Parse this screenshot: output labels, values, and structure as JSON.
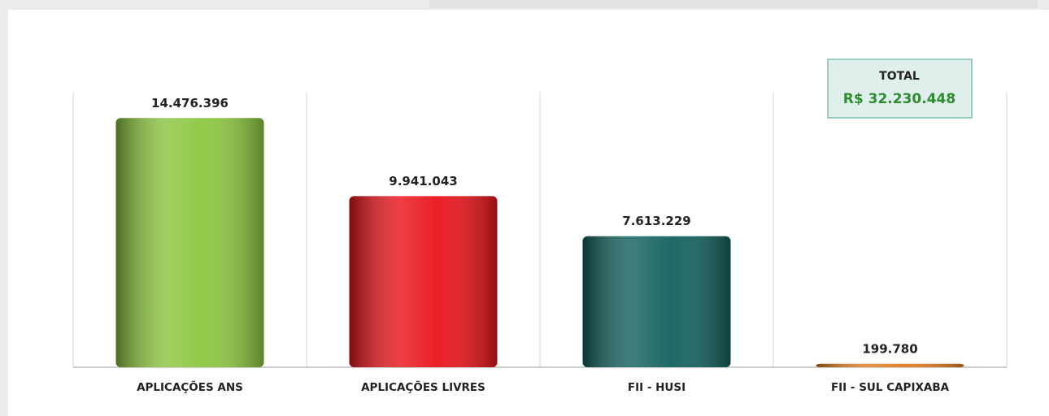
{
  "chart_data": {
    "type": "bar",
    "categories": [
      "APLICAÇÕES ANS",
      "APLICAÇÕES LIVRES",
      "FII - HUSI",
      "FII - SUL CAPIXABA"
    ],
    "values": [
      14476396,
      9941043,
      7613229,
      199780
    ],
    "value_labels": [
      "14.476.396",
      "9.941.043",
      "7.613.229",
      "199.780"
    ],
    "colors": [
      "#8cc63f",
      "#e8141a",
      "#12605d",
      "#e07b20"
    ],
    "ylim": [
      0,
      16000000
    ],
    "annotations": {
      "total_label": "TOTAL",
      "total_value": "R$ 32.230.448"
    }
  }
}
